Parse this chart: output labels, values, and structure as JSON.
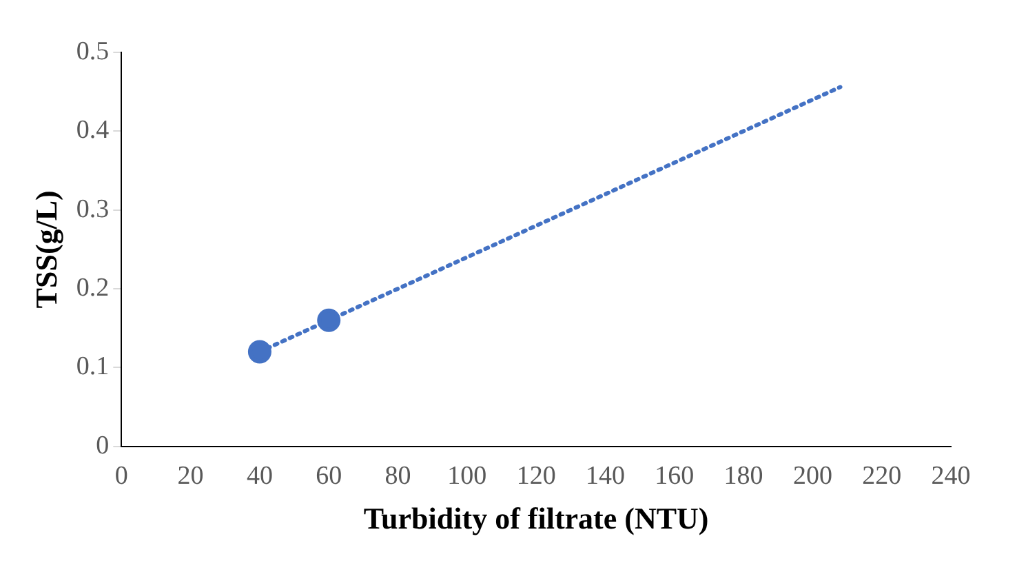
{
  "chart_data": {
    "type": "scatter",
    "xlabel": "Turbidity of filtrate (NTU)",
    "ylabel": "TSS(g/L)",
    "xlim": [
      0,
      240
    ],
    "xticks": [
      0,
      20,
      40,
      60,
      80,
      100,
      120,
      140,
      160,
      180,
      200,
      220,
      240
    ],
    "ylim": [
      0,
      0.5
    ],
    "yticks": [
      0,
      0.1,
      0.2,
      0.3,
      0.4,
      0.5
    ],
    "grid": false,
    "legend": false,
    "series": [
      {
        "color": "#4472c4",
        "x": [
          40,
          60
        ],
        "values": [
          0.12,
          0.16
        ],
        "marker": "circle"
      },
      {
        "type": "line",
        "color": "#4472c4",
        "x": [
          40,
          208
        ],
        "values": [
          0.12,
          0.456
        ],
        "marker": "none",
        "line_style": "dotted"
      }
    ]
  }
}
